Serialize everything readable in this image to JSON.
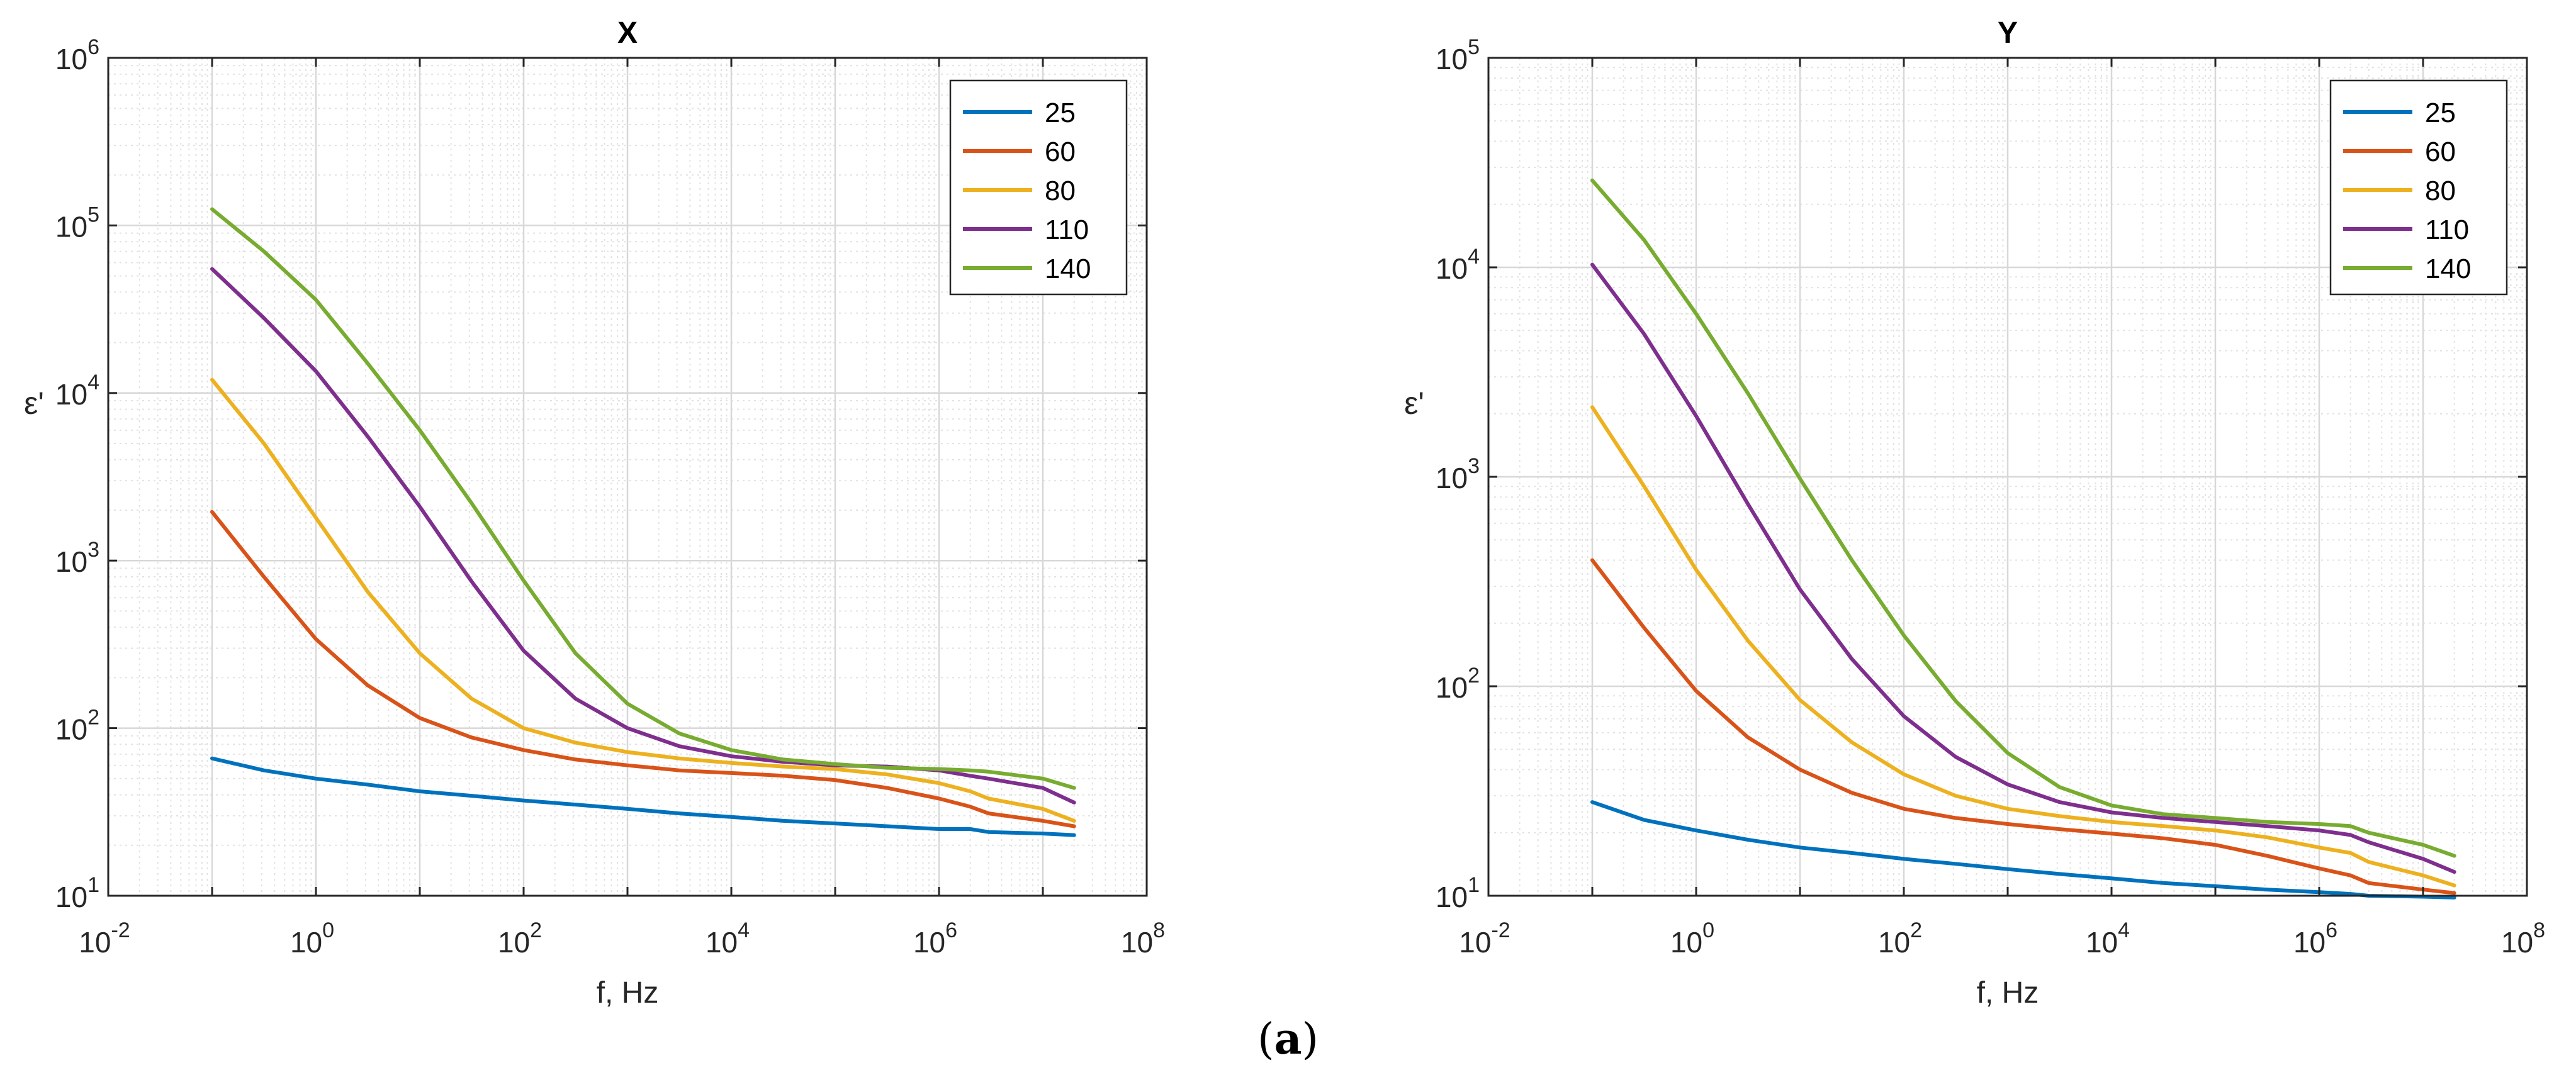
{
  "caption": {
    "open": "(",
    "letter": "a",
    "close": ")"
  },
  "chart_data": [
    {
      "type": "line",
      "title": "X",
      "xlabel": "f, Hz",
      "ylabel": "ε'",
      "xscale": "log",
      "yscale": "log",
      "xlim": [
        0.01,
        100000000
      ],
      "ylim": [
        10,
        1000000
      ],
      "grid": true,
      "legend_position": "top-right",
      "xticks": [
        {
          "base": "10",
          "exp": "-2"
        },
        {
          "base": "10",
          "exp": "0"
        },
        {
          "base": "10",
          "exp": "2"
        },
        {
          "base": "10",
          "exp": "4"
        },
        {
          "base": "10",
          "exp": "6"
        },
        {
          "base": "10",
          "exp": "8"
        }
      ],
      "yticks": [
        {
          "base": "10",
          "exp": "1"
        },
        {
          "base": "10",
          "exp": "2"
        },
        {
          "base": "10",
          "exp": "3"
        },
        {
          "base": "10",
          "exp": "4"
        },
        {
          "base": "10",
          "exp": "5"
        },
        {
          "base": "10",
          "exp": "6"
        }
      ],
      "x": [
        0.1,
        0.316,
        1,
        3.16,
        10,
        31.6,
        100,
        316,
        1000,
        3160,
        10000,
        31600,
        100000,
        316000,
        1000000,
        2000000,
        3000000,
        10000000,
        20000000
      ],
      "series": [
        {
          "name": "25",
          "color": "#0072BD",
          "values": [
            66,
            56,
            50,
            46,
            42,
            39.5,
            37,
            35,
            33,
            31,
            29.5,
            28,
            27,
            26,
            25,
            25,
            24,
            23.5,
            23
          ]
        },
        {
          "name": "60",
          "color": "#D95319",
          "values": [
            1950,
            800,
            340,
            180,
            115,
            88,
            74,
            65,
            60,
            56,
            54,
            52,
            49,
            44,
            38,
            34,
            31,
            28,
            26
          ]
        },
        {
          "name": "80",
          "color": "#EDB120",
          "values": [
            12000,
            5000,
            1800,
            650,
            280,
            150,
            100,
            82,
            72,
            66,
            62,
            59,
            57,
            53,
            47,
            42,
            38,
            33,
            28
          ]
        },
        {
          "name": "110",
          "color": "#7E2F8E",
          "values": [
            55000,
            28000,
            13500,
            5500,
            2100,
            750,
            290,
            150,
            100,
            78,
            68,
            63,
            60,
            59,
            56,
            52,
            50,
            44,
            36
          ]
        },
        {
          "name": "140",
          "color": "#77AC30",
          "values": [
            125000,
            70000,
            36000,
            15000,
            6000,
            2200,
            760,
            280,
            140,
            93,
            74,
            65,
            61,
            58,
            57,
            56,
            55,
            50,
            44
          ]
        }
      ]
    },
    {
      "type": "line",
      "title": "Y",
      "xlabel": "f, Hz",
      "ylabel": "ε'",
      "xscale": "log",
      "yscale": "log",
      "xlim": [
        0.01,
        100000000
      ],
      "ylim": [
        10,
        100000
      ],
      "grid": true,
      "legend_position": "top-right",
      "xticks": [
        {
          "base": "10",
          "exp": "-2"
        },
        {
          "base": "10",
          "exp": "0"
        },
        {
          "base": "10",
          "exp": "2"
        },
        {
          "base": "10",
          "exp": "4"
        },
        {
          "base": "10",
          "exp": "6"
        },
        {
          "base": "10",
          "exp": "8"
        }
      ],
      "yticks": [
        {
          "base": "10",
          "exp": "1"
        },
        {
          "base": "10",
          "exp": "2"
        },
        {
          "base": "10",
          "exp": "3"
        },
        {
          "base": "10",
          "exp": "4"
        },
        {
          "base": "10",
          "exp": "5"
        }
      ],
      "x": [
        0.1,
        0.316,
        1,
        3.16,
        10,
        31.6,
        100,
        316,
        1000,
        3160,
        10000,
        31600,
        100000,
        316000,
        1000000,
        2000000,
        3000000,
        10000000,
        20000000
      ],
      "series": [
        {
          "name": "25",
          "color": "#0072BD",
          "values": [
            28,
            23,
            20.5,
            18.5,
            17,
            16,
            15,
            14.2,
            13.4,
            12.7,
            12.1,
            11.5,
            11.1,
            10.7,
            10.4,
            10.2,
            10,
            9.9,
            9.8
          ]
        },
        {
          "name": "60",
          "color": "#D95319",
          "values": [
            400,
            190,
            95,
            57,
            40,
            31,
            26,
            23.5,
            22,
            20.8,
            19.8,
            18.8,
            17.5,
            15.5,
            13.5,
            12.5,
            11.5,
            10.7,
            10.3
          ]
        },
        {
          "name": "80",
          "color": "#EDB120",
          "values": [
            2150,
            900,
            360,
            165,
            86,
            54,
            38,
            30,
            26,
            24,
            22.5,
            21.5,
            20.5,
            19,
            17,
            16,
            14.5,
            12.5,
            11.2
          ]
        },
        {
          "name": "110",
          "color": "#7E2F8E",
          "values": [
            10300,
            4800,
            1950,
            740,
            290,
            135,
            72,
            46,
            34,
            28,
            25,
            23.5,
            22.5,
            21.5,
            20.5,
            19.5,
            18,
            15,
            13
          ]
        },
        {
          "name": "140",
          "color": "#77AC30",
          "values": [
            26000,
            13500,
            6000,
            2500,
            980,
            400,
            175,
            85,
            48,
            33,
            27,
            24.5,
            23.5,
            22.5,
            22,
            21.5,
            20,
            17.5,
            15.5
          ]
        }
      ]
    }
  ]
}
